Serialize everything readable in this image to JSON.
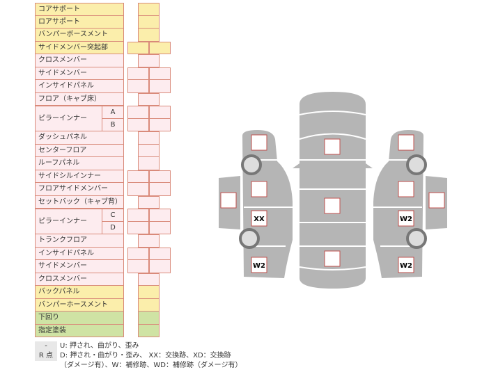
{
  "colors": {
    "yellow": "#fbeeab",
    "pink": "#fdecef",
    "green": "#cfe3a4",
    "border": "#d98a7a",
    "car": "#b5b5b5",
    "mark_border": "#c0504d"
  },
  "rows": [
    {
      "label": "コアサポート",
      "color": "yellow",
      "cells": 1
    },
    {
      "label": "ロアサポート",
      "color": "yellow",
      "cells": 1
    },
    {
      "label": "バンパーボースメント",
      "color": "yellow",
      "cells": 1
    },
    {
      "label": "サイドメンバー突起部",
      "color": "yellow",
      "cells": 2
    },
    {
      "label": "クロスメンバー",
      "color": "pink",
      "cells": 1
    },
    {
      "label": "サイドメンバー",
      "color": "pink",
      "cells": 2
    },
    {
      "label": "インサイドパネル",
      "color": "pink",
      "cells": 2
    },
    {
      "label": "フロア（キャブ床）",
      "color": "pink",
      "cells": 1
    },
    {
      "label": "ピラーインナー",
      "sub": "A",
      "color": "pink",
      "cells": 2
    },
    {
      "label": "",
      "sub": "B",
      "color": "pink",
      "cells": 2
    },
    {
      "label": "ダッシュパネル",
      "color": "pink",
      "cells": 1
    },
    {
      "label": "センターフロア",
      "color": "pink",
      "cells": 1
    },
    {
      "label": "ルーフパネル",
      "color": "pink",
      "cells": 1
    },
    {
      "label": "サイドシルインナー",
      "color": "pink",
      "cells": 2
    },
    {
      "label": "フロアサイドメンバー",
      "color": "pink",
      "cells": 2
    },
    {
      "label": "セットバック（キャブ背）",
      "color": "pink",
      "cells": 1
    },
    {
      "label": "ピラーインナー",
      "sub": "C",
      "color": "pink",
      "cells": 2
    },
    {
      "label": "",
      "sub": "D",
      "color": "pink",
      "cells": 2
    },
    {
      "label": "トランクフロア",
      "color": "pink",
      "cells": 1
    },
    {
      "label": "インサイドパネル",
      "color": "pink",
      "cells": 2
    },
    {
      "label": "サイドメンバー",
      "color": "pink",
      "cells": 2
    },
    {
      "label": "クロスメンバー",
      "color": "pink",
      "cells": 1
    },
    {
      "label": "バックパネル",
      "color": "yellow",
      "cells": 1
    },
    {
      "label": "バンパーホースメント",
      "color": "yellow",
      "cells": 1
    },
    {
      "label": "下回り",
      "color": "green",
      "cells": 1
    },
    {
      "label": "指定塗装",
      "color": "green",
      "cells": 1
    }
  ],
  "legend": {
    "u_key": "-",
    "u_text": "U: 押され、曲がり、歪み",
    "r_key": "R 点",
    "r_text1": "D: 押され・曲がり・歪み、 XX：交換跡、XD：交換跡",
    "r_text2": "（ダメージ有）、W：補修跡、WD：補修跡（ダメージ有）"
  },
  "marks": {
    "left_front": "",
    "left_mid": "",
    "left_door": "XX",
    "left_rear": "W2",
    "left_outer": "",
    "center_front": "",
    "center_mid": "",
    "center_rear": "",
    "right_front": "",
    "right_mid": "",
    "right_door": "W2",
    "right_rear": "W2",
    "right_outer": ""
  }
}
